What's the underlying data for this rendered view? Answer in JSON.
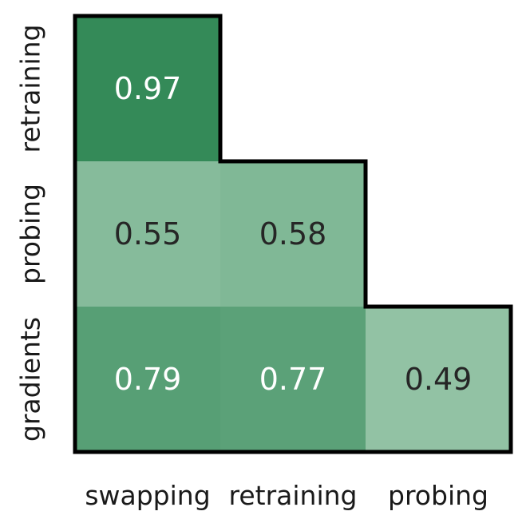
{
  "chart_data": {
    "type": "heatmap",
    "title": "",
    "xlabel": "",
    "ylabel": "",
    "x_categories": [
      "swapping",
      "retraining",
      "probing"
    ],
    "y_categories": [
      "retraining",
      "probing",
      "gradients"
    ],
    "values": [
      [
        0.97,
        null,
        null
      ],
      [
        0.55,
        0.58,
        null
      ],
      [
        0.79,
        0.77,
        0.49
      ]
    ],
    "value_labels": [
      [
        "0.97",
        "",
        ""
      ],
      [
        "0.55",
        "0.58",
        ""
      ],
      [
        "0.79",
        "0.77",
        "0.49"
      ]
    ],
    "colors": {
      "low": "#92c2a4",
      "high": "#348a58",
      "text_light": "#ffffff",
      "text_dark": "#262626",
      "outline": "#000000"
    },
    "grid": false,
    "legend": "none",
    "mask": "upper-triangle"
  }
}
